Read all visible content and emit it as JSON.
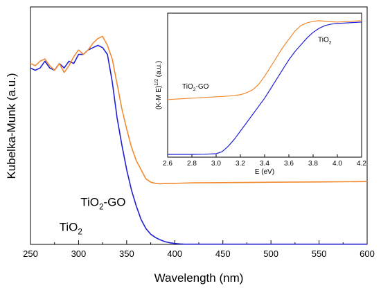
{
  "chart_data": [
    {
      "type": "line",
      "xlabel": "Wavelength (nm)",
      "ylabel": "Kubelka-Munk (a.u.)",
      "xlim": [
        250,
        600
      ],
      "ylim": [
        0,
        1.05
      ],
      "xticks": [
        "250",
        "300",
        "350",
        "400",
        "450",
        "500",
        "550",
        "600"
      ],
      "yticks_shown": false,
      "colors": {
        "TiO2": "#1f1fd6",
        "TiO2-GO": "#f28a30"
      },
      "series_labels": {
        "TiO2": {
          "base": "TiO",
          "sub": "2",
          "rest": ""
        },
        "TiO2-GO": {
          "base": "TiO",
          "sub": "2",
          "rest": "-GO"
        }
      },
      "series": [
        {
          "name": "TiO2",
          "x": [
            250,
            255,
            260,
            265,
            270,
            275,
            280,
            285,
            290,
            295,
            300,
            305,
            310,
            315,
            320,
            325,
            330,
            335,
            340,
            345,
            350,
            355,
            360,
            365,
            370,
            375,
            380,
            385,
            390,
            395,
            400,
            405,
            410,
            450,
            500,
            550,
            600
          ],
          "y": [
            0.78,
            0.77,
            0.78,
            0.81,
            0.78,
            0.77,
            0.8,
            0.78,
            0.81,
            0.8,
            0.84,
            0.84,
            0.86,
            0.87,
            0.88,
            0.87,
            0.84,
            0.72,
            0.56,
            0.44,
            0.33,
            0.24,
            0.17,
            0.11,
            0.07,
            0.045,
            0.03,
            0.02,
            0.012,
            0.007,
            0.004,
            0.002,
            0.001,
            0.001,
            0.001,
            0.001,
            0.001
          ]
        },
        {
          "name": "TiO2-GO",
          "x": [
            250,
            255,
            260,
            265,
            270,
            275,
            280,
            285,
            290,
            295,
            300,
            305,
            310,
            315,
            320,
            325,
            330,
            335,
            340,
            345,
            350,
            355,
            360,
            365,
            370,
            375,
            380,
            385,
            390,
            395,
            400,
            420,
            450,
            500,
            550,
            600
          ],
          "y": [
            0.8,
            0.79,
            0.81,
            0.82,
            0.79,
            0.77,
            0.8,
            0.76,
            0.79,
            0.83,
            0.86,
            0.84,
            0.86,
            0.89,
            0.91,
            0.92,
            0.88,
            0.82,
            0.71,
            0.6,
            0.51,
            0.43,
            0.37,
            0.33,
            0.29,
            0.275,
            0.27,
            0.268,
            0.269,
            0.27,
            0.27,
            0.272,
            0.273,
            0.275,
            0.276,
            0.278
          ]
        }
      ]
    },
    {
      "type": "line",
      "inset": true,
      "xlabel": "E (eV)",
      "ylabel": {
        "base": "(K-M E)",
        "sup": "1/2",
        "rest": " (a.u.)"
      },
      "xlim": [
        2.6,
        4.2
      ],
      "ylim": [
        0,
        1.05
      ],
      "xticks": [
        "2.6",
        "2.8",
        "3.0",
        "3.2",
        "3.4",
        "3.6",
        "3.8",
        "4.0",
        "4.2"
      ],
      "series": [
        {
          "name": "TiO2",
          "x": [
            2.6,
            2.8,
            2.9,
            3.0,
            3.05,
            3.1,
            3.15,
            3.2,
            3.25,
            3.3,
            3.35,
            3.4,
            3.45,
            3.5,
            3.55,
            3.6,
            3.65,
            3.7,
            3.75,
            3.8,
            3.85,
            3.9,
            3.95,
            4.0,
            4.1,
            4.2
          ],
          "y": [
            0.02,
            0.02,
            0.021,
            0.025,
            0.04,
            0.08,
            0.13,
            0.19,
            0.25,
            0.31,
            0.37,
            0.43,
            0.5,
            0.57,
            0.64,
            0.71,
            0.77,
            0.82,
            0.87,
            0.91,
            0.94,
            0.96,
            0.97,
            0.975,
            0.98,
            0.985
          ]
        },
        {
          "name": "TiO2-GO",
          "x": [
            2.6,
            2.8,
            3.0,
            3.1,
            3.2,
            3.25,
            3.3,
            3.35,
            3.4,
            3.45,
            3.5,
            3.55,
            3.6,
            3.65,
            3.7,
            3.75,
            3.8,
            3.85,
            3.9,
            4.0,
            4.1,
            4.2
          ],
          "y": [
            0.42,
            0.43,
            0.44,
            0.445,
            0.455,
            0.47,
            0.49,
            0.53,
            0.59,
            0.66,
            0.73,
            0.8,
            0.86,
            0.92,
            0.96,
            0.98,
            0.99,
            0.995,
            0.99,
            0.985,
            0.99,
            0.995
          ]
        }
      ],
      "annotations": {
        "TiO2": {
          "base": "TiO",
          "sub": "2",
          "rest": ""
        },
        "TiO2-GO": {
          "base": "TiO",
          "sub": "2",
          "rest": "-GO"
        }
      }
    }
  ]
}
